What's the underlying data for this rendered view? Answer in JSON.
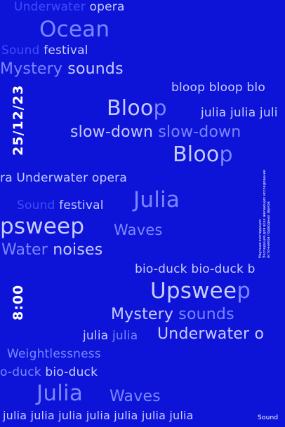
{
  "date": "25/12/23",
  "time": "8:00",
  "tagline": [
    "Научная экспедиция",
    "Экспедиция для всех желающих исследование",
    "источников подводных звуков"
  ],
  "corner_label": "Sound",
  "words": [
    {
      "segs": [
        [
          "dim",
          "Underwater "
        ],
        [
          "lt",
          "opera"
        ]
      ]
    },
    {
      "segs": [
        [
          "mid",
          "Ocean"
        ]
      ]
    },
    {
      "segs": [
        [
          "dim",
          "Sound "
        ],
        [
          "lt",
          "festival"
        ]
      ]
    },
    {
      "segs": [
        [
          "mid",
          "Mystery "
        ],
        [
          "lt",
          "sounds"
        ]
      ]
    },
    {
      "segs": [
        [
          "lt",
          "bloop bloop blo"
        ]
      ]
    },
    {
      "segs": [
        [
          "lt",
          "Bloo"
        ],
        [
          "mid",
          "p"
        ]
      ]
    },
    {
      "segs": [
        [
          "lt",
          "julia julia juli"
        ]
      ]
    },
    {
      "segs": [
        [
          "lt",
          "slow-down "
        ],
        [
          "mid",
          "slow-down"
        ]
      ]
    },
    {
      "segs": [
        [
          "lt",
          "Bloo"
        ],
        [
          "mid",
          "p"
        ]
      ]
    },
    {
      "segs": [
        [
          "lt",
          "ra Underwater opera"
        ]
      ]
    },
    {
      "segs": [
        [
          "mid",
          "Julia"
        ]
      ]
    },
    {
      "segs": [
        [
          "dim",
          "Sound "
        ],
        [
          "lt",
          "festival"
        ]
      ]
    },
    {
      "segs": [
        [
          "lt",
          "psweep"
        ]
      ]
    },
    {
      "segs": [
        [
          "mid",
          "Waves"
        ]
      ]
    },
    {
      "segs": [
        [
          "mid",
          "Water "
        ],
        [
          "lt",
          "noises"
        ]
      ]
    },
    {
      "segs": [
        [
          "lt",
          "bio-duck bio-duck b"
        ]
      ]
    },
    {
      "segs": [
        [
          "lt",
          "Upswee"
        ],
        [
          "mid",
          "p"
        ]
      ]
    },
    {
      "segs": [
        [
          "lt",
          "Mystery "
        ],
        [
          "mid",
          "sounds"
        ]
      ]
    },
    {
      "segs": [
        [
          "lt",
          "julia "
        ],
        [
          "mid",
          "julia"
        ]
      ]
    },
    {
      "segs": [
        [
          "lt",
          "Underwater o"
        ]
      ]
    },
    {
      "segs": [
        [
          "mid",
          "Weightlessness"
        ]
      ]
    },
    {
      "segs": [
        [
          "mid",
          "o-duck "
        ],
        [
          "lt",
          "bio-duck"
        ]
      ]
    },
    {
      "segs": [
        [
          "mid",
          "Julia"
        ]
      ]
    },
    {
      "segs": [
        [
          "mid",
          "Waves"
        ]
      ]
    },
    {
      "segs": [
        [
          "lt",
          "julia julia julia julia julia julia julia"
        ]
      ]
    }
  ]
}
